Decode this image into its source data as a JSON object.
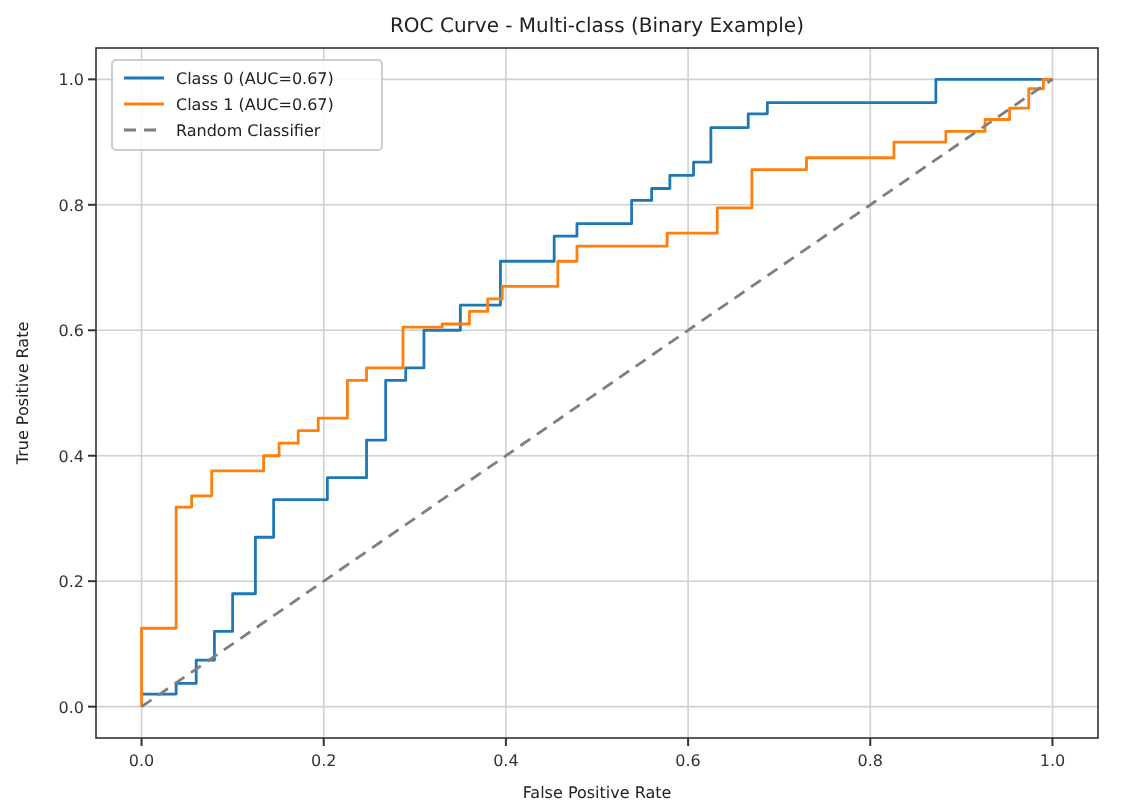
{
  "chart_data": {
    "type": "step",
    "title": "ROC Curve - Multi-class (Binary Example)",
    "xlabel": "False Positive Rate",
    "ylabel": "True Positive Rate",
    "xlim": [
      -0.05,
      1.05
    ],
    "ylim": [
      -0.05,
      1.05
    ],
    "xticks": [
      {
        "value": 0,
        "label": "0.0"
      },
      {
        "value": 0.2,
        "label": "0.2"
      },
      {
        "value": 0.4,
        "label": "0.4"
      },
      {
        "value": 0.6,
        "label": "0.6"
      },
      {
        "value": 0.8,
        "label": "0.8"
      },
      {
        "value": 1,
        "label": "1.0"
      }
    ],
    "yticks": [
      {
        "value": 0,
        "label": "0.0"
      },
      {
        "value": 0.2,
        "label": "0.2"
      },
      {
        "value": 0.4,
        "label": "0.4"
      },
      {
        "value": 0.6,
        "label": "0.6"
      },
      {
        "value": 0.8,
        "label": "0.8"
      },
      {
        "value": 1,
        "label": "1.0"
      }
    ],
    "grid": true,
    "legend": "top left",
    "series": [
      {
        "name": "Class 0 (AUC=0.67)",
        "color": "#1f77b4",
        "x": [
          0,
          0.038,
          0.06,
          0.08,
          0.1,
          0.125,
          0.145,
          0.204,
          0.247,
          0.268,
          0.29,
          0.31,
          0.35,
          0.394,
          0.453,
          0.478,
          0.538,
          0.56,
          0.58,
          0.606,
          0.625,
          0.666,
          0.687,
          0.872,
          1
        ],
        "values": [
          0.02,
          0.037,
          0.074,
          0.12,
          0.18,
          0.27,
          0.33,
          0.365,
          0.425,
          0.52,
          0.54,
          0.6,
          0.64,
          0.71,
          0.75,
          0.77,
          0.807,
          0.826,
          0.847,
          0.868,
          0.923,
          0.945,
          0.963,
          1,
          1
        ]
      },
      {
        "name": "Class 1 (AUC=0.67)",
        "color": "#ff7f0e",
        "x": [
          0,
          0,
          0.038,
          0.055,
          0.077,
          0.134,
          0.151,
          0.172,
          0.194,
          0.226,
          0.247,
          0.287,
          0.33,
          0.36,
          0.38,
          0.396,
          0.457,
          0.478,
          0.577,
          0.632,
          0.67,
          0.73,
          0.826,
          0.883,
          0.926,
          0.953,
          0.974,
          0.99,
          1
        ],
        "values": [
          0,
          0.125,
          0.318,
          0.336,
          0.376,
          0.4,
          0.42,
          0.44,
          0.46,
          0.52,
          0.54,
          0.605,
          0.61,
          0.63,
          0.65,
          0.67,
          0.71,
          0.734,
          0.755,
          0.795,
          0.856,
          0.875,
          0.9,
          0.917,
          0.936,
          0.954,
          0.985,
          1,
          1
        ]
      },
      {
        "name": "Random Classifier",
        "type": "line",
        "color": "#7f7f7f",
        "line_style": "dashed",
        "x": [
          0,
          1
        ],
        "values": [
          0,
          1
        ]
      }
    ]
  }
}
